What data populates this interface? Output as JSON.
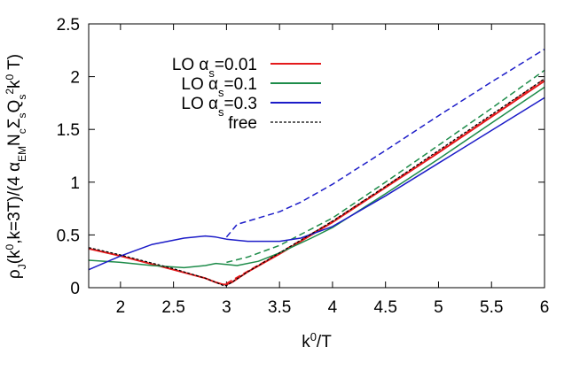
{
  "chart_data": {
    "type": "line",
    "xlabel_main": "k",
    "xlabel_sup": "0",
    "xlabel_tail": "/T",
    "ylabel_parts": [
      {
        "t": "ρ"
      },
      {
        "t": "J",
        "s": "sub"
      },
      {
        "t": "(k"
      },
      {
        "t": "0",
        "s": "sup"
      },
      {
        "t": ",k=3T)/(4 α"
      },
      {
        "t": "EM",
        "s": "sub"
      },
      {
        "t": "N"
      },
      {
        "t": "c",
        "s": "sub"
      },
      {
        "t": "Σ"
      },
      {
        "t": "s",
        "s": "sub"
      },
      {
        "t": "Q"
      },
      {
        "t": "s",
        "s": "sub"
      },
      {
        "t": "2",
        "s": "sup"
      },
      {
        "t": "k"
      },
      {
        "t": "0",
        "s": "sup"
      },
      {
        "t": " T)"
      }
    ],
    "xlim": [
      1.7,
      6.0
    ],
    "ylim": [
      0,
      2.5
    ],
    "xticks": [
      2,
      2.5,
      3,
      3.5,
      4,
      4.5,
      5,
      5.5,
      6
    ],
    "xtick_labels": [
      "2",
      "2.5",
      "3",
      "3.5",
      "4",
      "4.5",
      "5",
      "5.5",
      "6"
    ],
    "yticks": [
      0,
      0.5,
      1,
      1.5,
      2,
      2.5
    ],
    "ytick_labels": [
      "0",
      "0.5",
      "1",
      "1.5",
      "2",
      "2.5"
    ],
    "legend_position": "top-left",
    "legend": [
      {
        "prefix": "LO α",
        "sub": "s",
        "suffix": "=0.01",
        "color": "#e41a1c",
        "dash": "solid"
      },
      {
        "prefix": "LO α",
        "sub": "s",
        "suffix": "=0.1",
        "color": "#1e8c4a",
        "dash": "solid"
      },
      {
        "prefix": "LO α",
        "sub": "s",
        "suffix": "=0.3",
        "color": "#1c1cc8",
        "dash": "solid"
      },
      {
        "prefix": "free",
        "sub": "",
        "suffix": "",
        "color": "#000000",
        "dash": "dotted"
      }
    ],
    "series": [
      {
        "name": "LO αs=0.01",
        "color": "#e41a1c",
        "dash": "solid",
        "width": 2,
        "x": [
          1.7,
          2.0,
          2.5,
          2.8,
          2.9,
          2.97,
          3.0,
          3.05,
          3.2,
          3.5,
          4.0,
          4.5,
          5.0,
          5.5,
          6.0
        ],
        "y": [
          0.37,
          0.3,
          0.17,
          0.09,
          0.05,
          0.03,
          0.03,
          0.05,
          0.15,
          0.32,
          0.62,
          0.95,
          1.28,
          1.62,
          1.96
        ]
      },
      {
        "name": "LO αs=0.01 (dashed)",
        "color": "#e41a1c",
        "dash": "dashed",
        "width": 1.5,
        "x": [
          3.0,
          3.5,
          4.0,
          4.5,
          5.0,
          5.5,
          6.0
        ],
        "y": [
          0.04,
          0.33,
          0.63,
          0.96,
          1.29,
          1.63,
          1.98
        ]
      },
      {
        "name": "LO αs=0.1",
        "color": "#1e8c4a",
        "dash": "solid",
        "width": 1.5,
        "x": [
          1.7,
          2.0,
          2.3,
          2.6,
          2.8,
          2.9,
          3.0,
          3.1,
          3.3,
          3.5,
          3.8,
          4.0,
          4.5,
          5.0,
          5.5,
          6.0
        ],
        "y": [
          0.26,
          0.24,
          0.21,
          0.19,
          0.21,
          0.23,
          0.22,
          0.21,
          0.25,
          0.33,
          0.47,
          0.57,
          0.89,
          1.22,
          1.56,
          1.9
        ]
      },
      {
        "name": "LO αs=0.1 (dashed)",
        "color": "#1e8c4a",
        "dash": "dashed",
        "width": 1.5,
        "x": [
          3.0,
          3.2,
          3.5,
          4.0,
          4.5,
          5.0,
          5.5,
          6.0
        ],
        "y": [
          0.24,
          0.29,
          0.4,
          0.66,
          1.0,
          1.35,
          1.7,
          2.06
        ]
      },
      {
        "name": "LO αs=0.3",
        "color": "#1c1cc8",
        "dash": "solid",
        "width": 1.5,
        "x": [
          1.7,
          2.0,
          2.3,
          2.6,
          2.8,
          2.9,
          3.0,
          3.2,
          3.5,
          3.7,
          4.0,
          4.5,
          5.0,
          5.5,
          6.0
        ],
        "y": [
          0.17,
          0.3,
          0.41,
          0.47,
          0.49,
          0.48,
          0.46,
          0.44,
          0.44,
          0.47,
          0.58,
          0.87,
          1.18,
          1.49,
          1.8
        ]
      },
      {
        "name": "LO αs=0.3 (dashed)",
        "color": "#1c1cc8",
        "dash": "dashed",
        "width": 1.5,
        "x": [
          3.0,
          3.1,
          3.3,
          3.5,
          3.7,
          4.0,
          4.5,
          5.0,
          5.5,
          6.0
        ],
        "y": [
          0.48,
          0.6,
          0.66,
          0.72,
          0.81,
          0.98,
          1.3,
          1.63,
          1.95,
          2.26
        ]
      },
      {
        "name": "free",
        "color": "#000000",
        "dash": "dotted",
        "width": 1.2,
        "x": [
          1.7,
          2.0,
          2.5,
          2.8,
          2.9,
          2.97,
          3.0,
          3.05,
          3.2,
          3.5,
          4.0,
          4.5,
          5.0,
          5.5,
          6.0
        ],
        "y": [
          0.38,
          0.31,
          0.18,
          0.09,
          0.05,
          0.02,
          0.02,
          0.05,
          0.15,
          0.33,
          0.63,
          0.96,
          1.3,
          1.64,
          1.98
        ]
      }
    ]
  }
}
